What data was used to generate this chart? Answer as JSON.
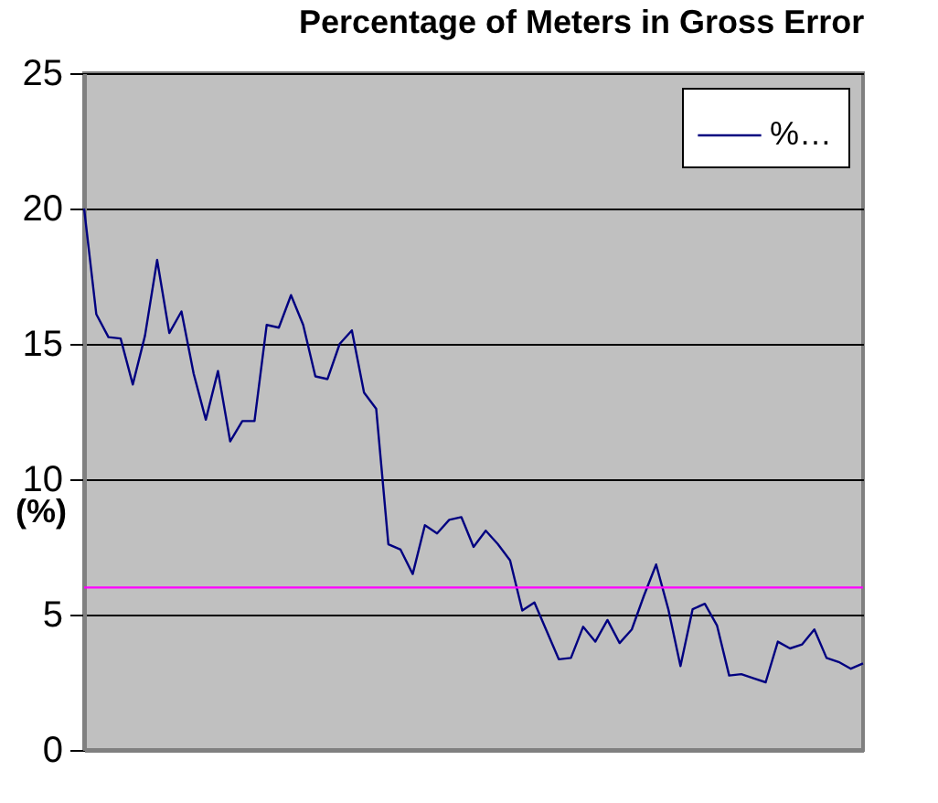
{
  "chart_data": {
    "type": "line",
    "title": "Percentage of Meters in Gross Error",
    "ylabel": "(%)",
    "categories": [
      null,
      null,
      null,
      null,
      null,
      null,
      null,
      null,
      null,
      null,
      null,
      null,
      null,
      null,
      null,
      null,
      null,
      null,
      null,
      null,
      null,
      null,
      null,
      null,
      null,
      null,
      null,
      null,
      null,
      null,
      null,
      null,
      null,
      null,
      null,
      null,
      null,
      null,
      null,
      null,
      null,
      null,
      null,
      null,
      null,
      null,
      null,
      null,
      null,
      null,
      null,
      null,
      null,
      null,
      null,
      null,
      null,
      null,
      null,
      null,
      null,
      null,
      null,
      null,
      null
    ],
    "series": [
      {
        "name": "%…",
        "color": "#000080",
        "values": [
          20.0,
          16.1,
          15.25,
          15.2,
          13.5,
          15.3,
          18.1,
          15.4,
          16.2,
          13.9,
          12.2,
          14.0,
          11.4,
          12.15,
          12.15,
          15.7,
          15.6,
          16.8,
          15.7,
          13.8,
          13.7,
          15.0,
          15.5,
          13.2,
          12.6,
          7.6,
          7.4,
          6.5,
          8.3,
          8.0,
          8.5,
          8.6,
          7.5,
          8.1,
          7.6,
          7.0,
          5.15,
          5.45,
          4.4,
          3.35,
          3.4,
          4.55,
          4.0,
          4.8,
          3.95,
          4.45,
          5.7,
          6.85,
          5.2,
          3.1,
          5.2,
          5.4,
          4.6,
          2.75,
          2.8,
          2.65,
          2.5,
          4.0,
          3.75,
          3.9,
          4.45,
          3.4,
          3.25,
          3.0,
          3.2
        ]
      }
    ],
    "ylim": [
      0,
      25
    ],
    "yticks": [
      0,
      5,
      10,
      15,
      20,
      25
    ],
    "grid": "y",
    "legend": "top right",
    "tick_labels": "y",
    "marker": "none",
    "line_style": "solid",
    "ref_lines": [
      {
        "axis": "y",
        "value": 6,
        "color": "#ff00ff"
      }
    ]
  }
}
